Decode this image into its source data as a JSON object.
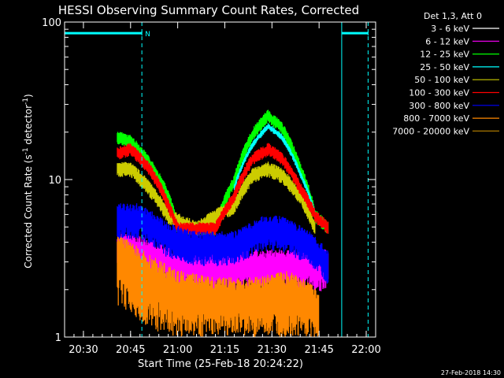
{
  "chart_data": {
    "type": "line",
    "title": "HESSI Observing Summary Count Rates, Corrected",
    "xlabel": "Start Time (25-Feb-18 20:24:22)",
    "ylabel_main": "Corrected Count Rate (s",
    "ylabel_sup1": "-1",
    "ylabel_mid": " detector",
    "ylabel_sup2": "-1",
    "ylabel_end": ")",
    "yscale": "log",
    "ylim": [
      1,
      100
    ],
    "xlim_minutes": [
      20.4,
      22.05
    ],
    "x_ticks": [
      {
        "t": 20.5,
        "label": "20:30"
      },
      {
        "t": 20.75,
        "label": "20:45"
      },
      {
        "t": 21.0,
        "label": "21:00"
      },
      {
        "t": 21.25,
        "label": "21:15"
      },
      {
        "t": 21.5,
        "label": "21:30"
      },
      {
        "t": 21.75,
        "label": "21:45"
      },
      {
        "t": 22.0,
        "label": "22:00"
      }
    ],
    "y_ticks": [
      {
        "v": 1,
        "label": "1"
      },
      {
        "v": 10,
        "label": "10"
      },
      {
        "v": 100,
        "label": "100"
      }
    ],
    "legend_header": "Det 1,3, Att 0",
    "legend_placement": "right",
    "series": [
      {
        "name": "3 - 6 keV",
        "color": "#ffffff"
      },
      {
        "name": "6 - 12 keV",
        "color": "#ff00ff"
      },
      {
        "name": "12 - 25 keV",
        "color": "#00ff00"
      },
      {
        "name": "25 - 50 keV",
        "color": "#00ffff"
      },
      {
        "name": "50 - 100 keV",
        "color": "#cccc00"
      },
      {
        "name": "100 - 300 keV",
        "color": "#ff0000"
      },
      {
        "name": "300 - 800 keV",
        "color": "#0000ff"
      },
      {
        "name": "800 - 7000 keV",
        "color": "#ff8800"
      },
      {
        "name": "7000 - 20000 keV",
        "color": "#aa7700"
      }
    ],
    "series_samples": [
      {
        "band": "12 - 25 keV",
        "points": [
          [
            20.68,
            19
          ],
          [
            20.75,
            18
          ],
          [
            20.85,
            13
          ],
          [
            20.95,
            8
          ],
          [
            21.0,
            5
          ],
          [
            21.1,
            5
          ],
          [
            21.2,
            5
          ],
          [
            21.3,
            10
          ],
          [
            21.4,
            20
          ],
          [
            21.48,
            26
          ],
          [
            21.55,
            22
          ],
          [
            21.65,
            12
          ],
          [
            21.73,
            6
          ],
          [
            21.8,
            5
          ]
        ]
      },
      {
        "band": "25 - 50 keV",
        "points": [
          [
            21.3,
            9
          ],
          [
            21.4,
            17
          ],
          [
            21.48,
            22
          ],
          [
            21.55,
            19
          ],
          [
            21.65,
            11
          ],
          [
            21.73,
            6
          ]
        ]
      },
      {
        "band": "100 - 300 keV",
        "points": [
          [
            20.68,
            15
          ],
          [
            20.75,
            16
          ],
          [
            20.85,
            12
          ],
          [
            20.95,
            7
          ],
          [
            21.0,
            5
          ],
          [
            21.1,
            5
          ],
          [
            21.2,
            5
          ],
          [
            21.3,
            8
          ],
          [
            21.4,
            14
          ],
          [
            21.48,
            16
          ],
          [
            21.55,
            14
          ],
          [
            21.65,
            9
          ],
          [
            21.73,
            6
          ],
          [
            21.8,
            5
          ]
        ]
      },
      {
        "band": "50 - 100 keV",
        "points": [
          [
            20.68,
            12
          ],
          [
            20.75,
            12
          ],
          [
            20.85,
            9
          ],
          [
            20.95,
            6
          ],
          [
            21.1,
            5
          ],
          [
            21.3,
            7
          ],
          [
            21.4,
            11
          ],
          [
            21.48,
            12
          ],
          [
            21.55,
            11
          ],
          [
            21.65,
            8
          ],
          [
            21.73,
            5
          ]
        ]
      },
      {
        "band": "300 - 800 keV",
        "points": [
          [
            20.68,
            6
          ],
          [
            20.8,
            6
          ],
          [
            20.95,
            4.5
          ],
          [
            21.1,
            4
          ],
          [
            21.3,
            4
          ],
          [
            21.45,
            5
          ],
          [
            21.55,
            5
          ],
          [
            21.7,
            4
          ],
          [
            21.8,
            3
          ]
        ]
      },
      {
        "band": "6 - 12 keV",
        "points": [
          [
            20.68,
            4
          ],
          [
            20.85,
            3.5
          ],
          [
            21.0,
            3
          ],
          [
            21.2,
            3
          ],
          [
            21.4,
            3
          ],
          [
            21.6,
            3
          ],
          [
            21.8,
            3
          ]
        ]
      },
      {
        "band": "800 - 7000 keV",
        "points": [
          [
            20.68,
            3.5
          ],
          [
            20.85,
            2.5
          ],
          [
            21.0,
            2
          ],
          [
            21.2,
            1.8
          ],
          [
            21.4,
            1.8
          ],
          [
            21.6,
            2
          ],
          [
            21.75,
            1.5
          ]
        ]
      }
    ],
    "markers": [
      {
        "type": "solid",
        "t": 20.4,
        "color": "#00ffff"
      },
      {
        "type": "dashed",
        "t": 20.81,
        "color": "#00ffff"
      },
      {
        "type": "solid",
        "t": 21.87,
        "color": "#00ffff"
      },
      {
        "type": "dashed",
        "t": 22.01,
        "color": "#00ffff"
      }
    ],
    "flag_bars": [
      {
        "t0": 20.4,
        "t1": 20.81,
        "level": 85,
        "label": "N"
      },
      {
        "t0": 21.87,
        "t1": 22.01,
        "level": 85,
        "label": ""
      }
    ],
    "footer_date": "27-Feb-2018 14:30"
  }
}
